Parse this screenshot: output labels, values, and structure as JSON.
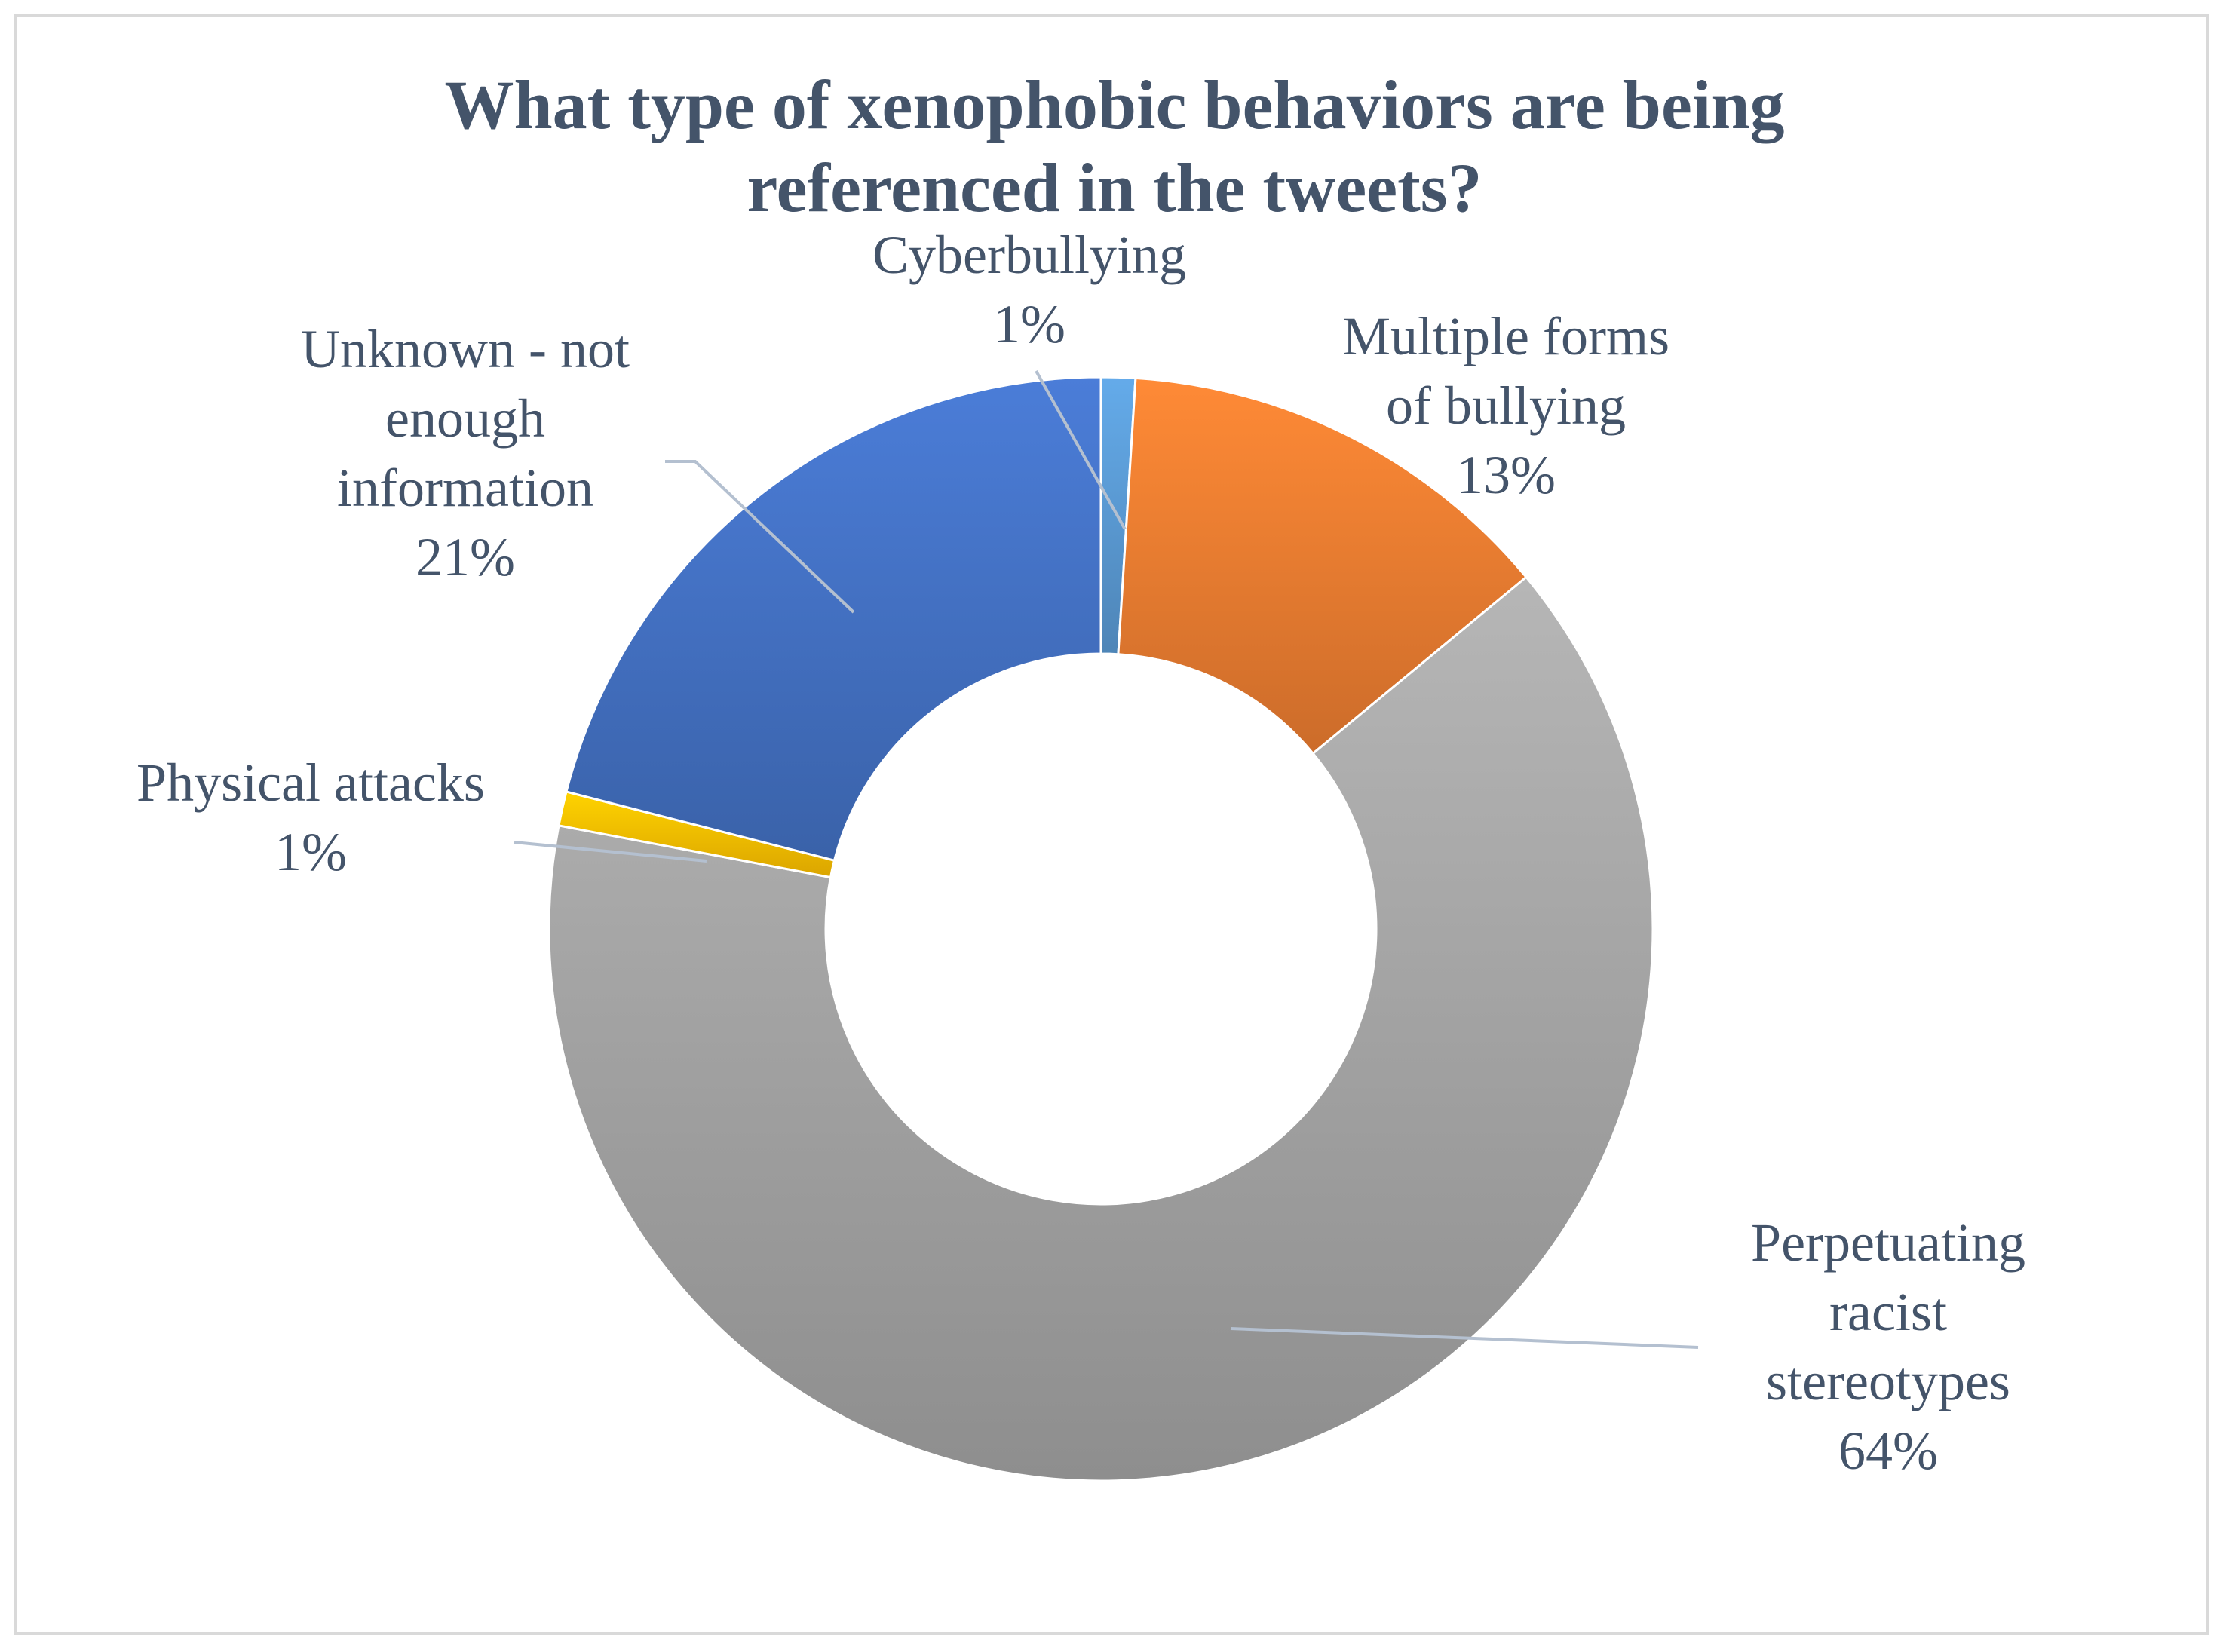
{
  "chart_data": {
    "type": "pie",
    "variant": "doughnut",
    "title": [
      "What type of xenophobic behaviors are being",
      "referenced in the tweets?"
    ],
    "slices": [
      {
        "label": [
          "Cyberbullying"
        ],
        "value": 1,
        "value_label": "1%",
        "color": "#5b9bd5"
      },
      {
        "label": [
          "Multiple forms",
          "of bullying"
        ],
        "value": 13,
        "value_label": "13%",
        "color": "#ed7d31"
      },
      {
        "label": [
          "Perpetuating",
          "racist",
          "stereotypes"
        ],
        "value": 64,
        "value_label": "64%",
        "color": "#a5a5a5"
      },
      {
        "label": [
          "Physical attacks"
        ],
        "value": 1,
        "value_label": "1%",
        "color": "#ffc000"
      },
      {
        "label": [
          "Unknown - not",
          "enough",
          "information"
        ],
        "value": 21,
        "value_label": "21%",
        "color": "#4472c4"
      }
    ],
    "legend": "none",
    "start_angle": "12 o'clock",
    "direction": "clockwise"
  }
}
